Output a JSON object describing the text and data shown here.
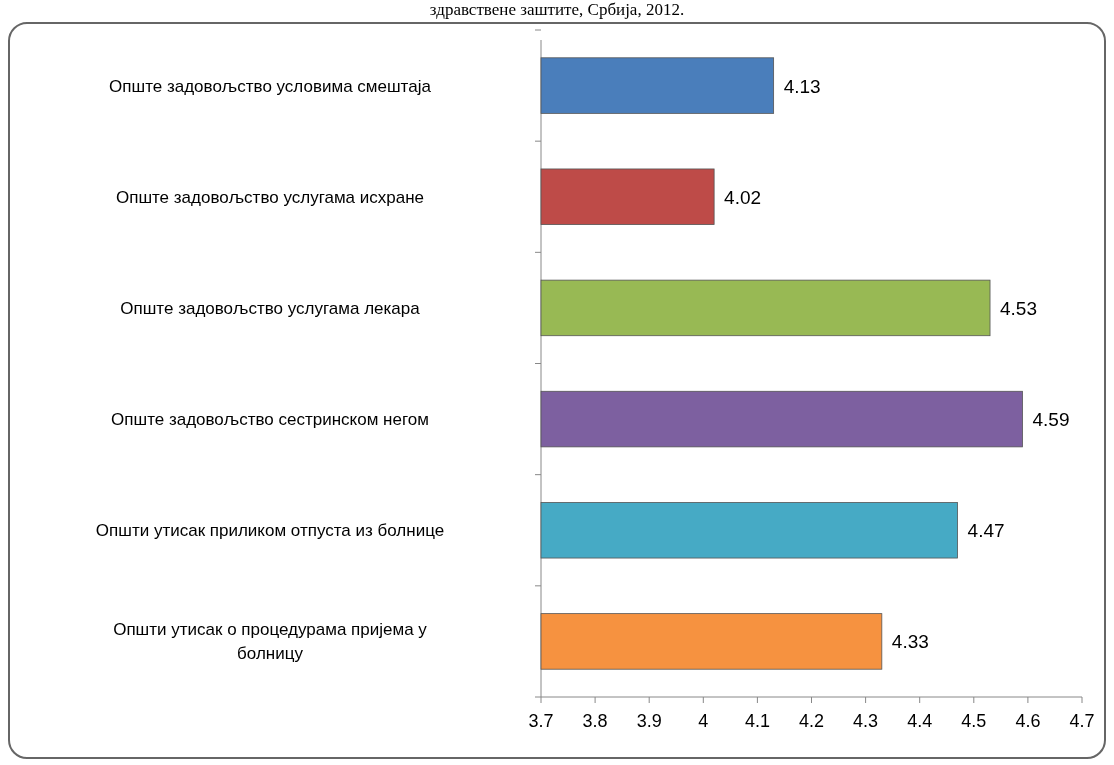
{
  "chart_data": {
    "type": "bar",
    "orientation": "horizontal",
    "title": "здравствене заштите, Србија, 2012.",
    "categories": [
      "Опште задовољство условима смештаја",
      "Опште задовољство услугама исхране",
      "Опште задовољство услугама лекара",
      "Опште задовољство сестринском негом",
      "Општи утисак приликом отпуста из болнице",
      "Општи утисак о процедурама пријема у болницу"
    ],
    "values": [
      4.13,
      4.02,
      4.53,
      4.59,
      4.47,
      4.33
    ],
    "colors": [
      "#4a7ebb",
      "#be4b48",
      "#98b954",
      "#7d60a0",
      "#46aac5",
      "#f69240"
    ],
    "xlim": [
      3.7,
      4.7
    ],
    "xticks": [
      3.7,
      3.8,
      3.9,
      4,
      4.1,
      4.2,
      4.3,
      4.4,
      4.5,
      4.6,
      4.7
    ],
    "data_labels": true,
    "grid": false
  }
}
